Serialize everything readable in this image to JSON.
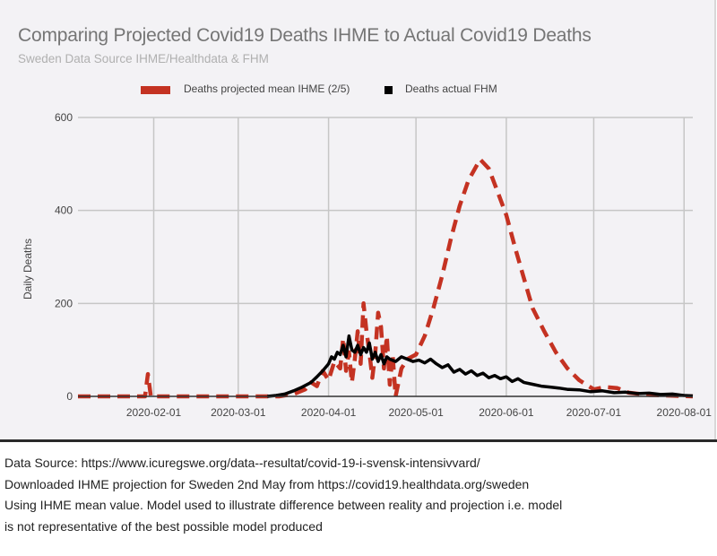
{
  "chart_data": {
    "type": "line",
    "title": "Comparing Projected Covid19 Deaths IHME to Actual Covid19 Deaths",
    "subtitle": "Sweden Data Source IHME/Healthdata & FHM",
    "xlabel": "",
    "ylabel": "Daily Deaths",
    "ylim": [
      0,
      600
    ],
    "yticks": [
      0,
      200,
      400,
      600
    ],
    "xlim": [
      "2020-01-06",
      "2020-08-04"
    ],
    "xticks": [
      "2020-02-01",
      "2020-03-01",
      "2020-04-01",
      "2020-05-01",
      "2020-06-01",
      "2020-07-01",
      "2020-08-01"
    ],
    "grid": true,
    "legend_position": "top-center",
    "series": [
      {
        "name": "Deaths projected mean IHME (2/5)",
        "color": "#c43222",
        "style": "dashed",
        "points": [
          [
            "2020-01-06",
            0
          ],
          [
            "2020-01-25",
            0
          ],
          [
            "2020-01-29",
            0
          ],
          [
            "2020-01-30",
            48
          ],
          [
            "2020-01-31",
            0
          ],
          [
            "2020-02-15",
            0
          ],
          [
            "2020-03-01",
            0
          ],
          [
            "2020-03-15",
            0
          ],
          [
            "2020-03-20",
            5
          ],
          [
            "2020-03-24",
            15
          ],
          [
            "2020-03-26",
            30
          ],
          [
            "2020-03-28",
            22
          ],
          [
            "2020-03-30",
            55
          ],
          [
            "2020-04-01",
            35
          ],
          [
            "2020-04-03",
            75
          ],
          [
            "2020-04-05",
            60
          ],
          [
            "2020-04-06",
            125
          ],
          [
            "2020-04-07",
            55
          ],
          [
            "2020-04-08",
            95
          ],
          [
            "2020-04-09",
            30
          ],
          [
            "2020-04-10",
            80
          ],
          [
            "2020-04-11",
            140
          ],
          [
            "2020-04-12",
            70
          ],
          [
            "2020-04-13",
            200
          ],
          [
            "2020-04-14",
            140
          ],
          [
            "2020-04-15",
            95
          ],
          [
            "2020-04-16",
            40
          ],
          [
            "2020-04-17",
            90
          ],
          [
            "2020-04-18",
            180
          ],
          [
            "2020-04-19",
            150
          ],
          [
            "2020-04-20",
            60
          ],
          [
            "2020-04-21",
            130
          ],
          [
            "2020-04-22",
            25
          ],
          [
            "2020-04-23",
            90
          ],
          [
            "2020-04-24",
            0
          ],
          [
            "2020-04-26",
            60
          ],
          [
            "2020-04-28",
            80
          ],
          [
            "2020-05-01",
            90
          ],
          [
            "2020-05-04",
            130
          ],
          [
            "2020-05-07",
            190
          ],
          [
            "2020-05-10",
            260
          ],
          [
            "2020-05-13",
            340
          ],
          [
            "2020-05-16",
            410
          ],
          [
            "2020-05-19",
            465
          ],
          [
            "2020-05-23",
            510
          ],
          [
            "2020-05-26",
            490
          ],
          [
            "2020-05-29",
            440
          ],
          [
            "2020-06-01",
            390
          ],
          [
            "2020-06-04",
            320
          ],
          [
            "2020-06-07",
            255
          ],
          [
            "2020-06-10",
            190
          ],
          [
            "2020-06-14",
            140
          ],
          [
            "2020-06-18",
            95
          ],
          [
            "2020-06-22",
            60
          ],
          [
            "2020-06-26",
            35
          ],
          [
            "2020-07-01",
            15
          ],
          [
            "2020-07-05",
            20
          ],
          [
            "2020-07-09",
            18
          ],
          [
            "2020-07-13",
            8
          ],
          [
            "2020-07-20",
            3
          ],
          [
            "2020-08-04",
            0
          ]
        ]
      },
      {
        "name": "Deaths actual FHM",
        "color": "#000000",
        "style": "solid",
        "points": [
          [
            "2020-03-11",
            0
          ],
          [
            "2020-03-14",
            2
          ],
          [
            "2020-03-17",
            5
          ],
          [
            "2020-03-20",
            12
          ],
          [
            "2020-03-23",
            20
          ],
          [
            "2020-03-26",
            30
          ],
          [
            "2020-03-28",
            42
          ],
          [
            "2020-03-30",
            55
          ],
          [
            "2020-04-01",
            70
          ],
          [
            "2020-04-02",
            85
          ],
          [
            "2020-04-03",
            80
          ],
          [
            "2020-04-04",
            95
          ],
          [
            "2020-04-05",
            90
          ],
          [
            "2020-04-06",
            110
          ],
          [
            "2020-04-07",
            85
          ],
          [
            "2020-04-08",
            130
          ],
          [
            "2020-04-09",
            100
          ],
          [
            "2020-04-10",
            95
          ],
          [
            "2020-04-11",
            110
          ],
          [
            "2020-04-12",
            90
          ],
          [
            "2020-04-13",
            105
          ],
          [
            "2020-04-14",
            95
          ],
          [
            "2020-04-15",
            115
          ],
          [
            "2020-04-16",
            80
          ],
          [
            "2020-04-17",
            95
          ],
          [
            "2020-04-18",
            75
          ],
          [
            "2020-04-19",
            90
          ],
          [
            "2020-04-20",
            70
          ],
          [
            "2020-04-21",
            85
          ],
          [
            "2020-04-22",
            80
          ],
          [
            "2020-04-24",
            75
          ],
          [
            "2020-04-26",
            85
          ],
          [
            "2020-04-28",
            80
          ],
          [
            "2020-04-30",
            75
          ],
          [
            "2020-05-02",
            78
          ],
          [
            "2020-05-04",
            72
          ],
          [
            "2020-05-06",
            80
          ],
          [
            "2020-05-08",
            70
          ],
          [
            "2020-05-10",
            62
          ],
          [
            "2020-05-12",
            68
          ],
          [
            "2020-05-14",
            52
          ],
          [
            "2020-05-16",
            58
          ],
          [
            "2020-05-18",
            48
          ],
          [
            "2020-05-20",
            55
          ],
          [
            "2020-05-22",
            45
          ],
          [
            "2020-05-24",
            50
          ],
          [
            "2020-05-26",
            40
          ],
          [
            "2020-05-28",
            45
          ],
          [
            "2020-05-30",
            38
          ],
          [
            "2020-06-01",
            42
          ],
          [
            "2020-06-03",
            32
          ],
          [
            "2020-06-05",
            38
          ],
          [
            "2020-06-07",
            30
          ],
          [
            "2020-06-10",
            26
          ],
          [
            "2020-06-13",
            22
          ],
          [
            "2020-06-16",
            20
          ],
          [
            "2020-06-19",
            18
          ],
          [
            "2020-06-22",
            15
          ],
          [
            "2020-06-26",
            14
          ],
          [
            "2020-06-30",
            10
          ],
          [
            "2020-07-04",
            12
          ],
          [
            "2020-07-08",
            8
          ],
          [
            "2020-07-12",
            9
          ],
          [
            "2020-07-16",
            6
          ],
          [
            "2020-07-20",
            7
          ],
          [
            "2020-07-24",
            4
          ],
          [
            "2020-07-28",
            5
          ],
          [
            "2020-08-01",
            2
          ],
          [
            "2020-08-04",
            1
          ]
        ]
      }
    ]
  },
  "footnotes": [
    "Data Source: https://www.icuregswe.org/data--resultat/covid-19-i-svensk-intensivvard/",
    "Downloaded IHME projection for Sweden 2nd May from https://covid19.healthdata.org/sweden",
    "Using IHME mean value. Model used to illustrate difference between reality and projection i.e. model",
    "is not representative of the best possible model produced"
  ]
}
